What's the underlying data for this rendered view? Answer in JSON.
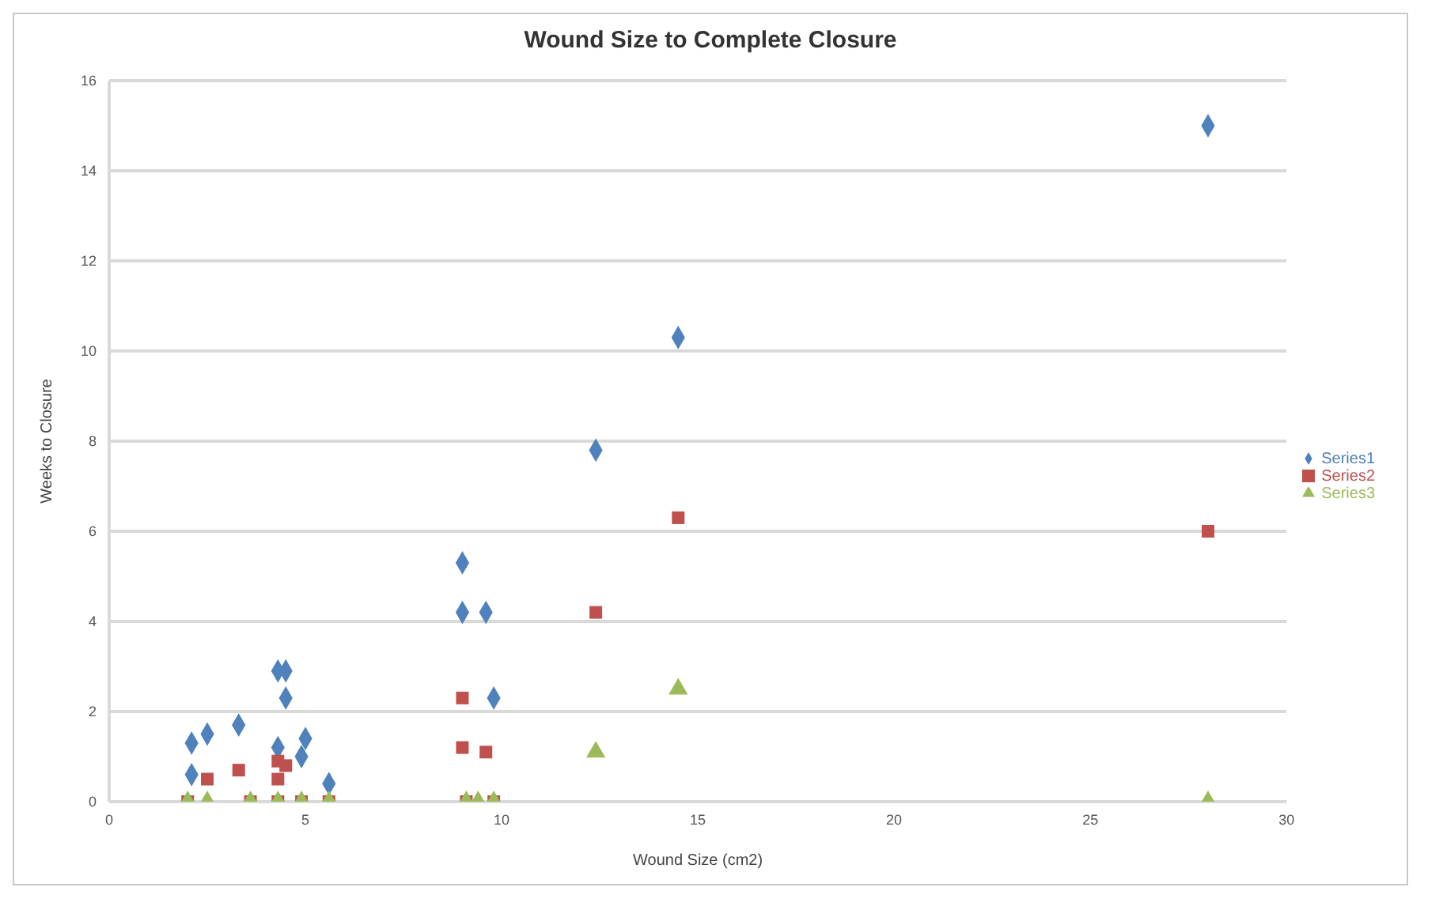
{
  "chart_data": {
    "type": "scatter",
    "title": "Wound Size to Complete Closure",
    "xlabel": "Wound Size (cm2)",
    "ylabel": "Weeks to Closure",
    "xlim": [
      0,
      30
    ],
    "xticks": [
      0,
      5,
      10,
      15,
      20,
      25,
      30
    ],
    "ylim": [
      0,
      16
    ],
    "yticks": [
      0,
      2,
      4,
      6,
      8,
      10,
      12,
      14,
      16
    ],
    "grid": "y",
    "legend": "right",
    "series": [
      {
        "name": "Series1",
        "color": "#4f81bd",
        "marker": "diamond",
        "x": [
          28.0,
          14.5,
          12.4,
          9.0,
          9.0,
          9.6,
          9.8,
          2.1,
          2.5,
          2.1,
          3.3,
          4.3,
          4.5,
          4.5,
          4.3,
          5.0,
          4.9,
          5.6
        ],
        "values": [
          15.0,
          10.3,
          7.8,
          5.3,
          4.2,
          4.2,
          2.3,
          1.3,
          1.5,
          0.6,
          1.7,
          2.9,
          2.9,
          2.3,
          1.2,
          1.4,
          1.0,
          0.4
        ]
      },
      {
        "name": "Series2",
        "color": "#c0504d",
        "marker": "square",
        "x": [
          14.5,
          28.0,
          12.4,
          9.0,
          9.0,
          9.6,
          2.5,
          3.3,
          4.3,
          4.5,
          4.3,
          2.0,
          3.6,
          4.3,
          4.9,
          5.6,
          9.1,
          9.8
        ],
        "values": [
          6.3,
          6.0,
          4.2,
          2.3,
          1.2,
          1.1,
          0.5,
          0.7,
          0.9,
          0.8,
          0.5,
          0,
          0,
          0,
          0,
          0,
          0,
          0
        ]
      },
      {
        "name": "Series3",
        "color": "#9bbb59",
        "marker": "triangle",
        "x": [
          28.0,
          14.5,
          12.4,
          2.0,
          2.5,
          3.6,
          4.3,
          4.9,
          5.6,
          9.1,
          9.4,
          9.8
        ],
        "values": [
          0,
          2.5,
          1.1,
          0,
          0,
          0,
          0,
          0,
          0,
          0,
          0,
          0
        ]
      }
    ]
  }
}
